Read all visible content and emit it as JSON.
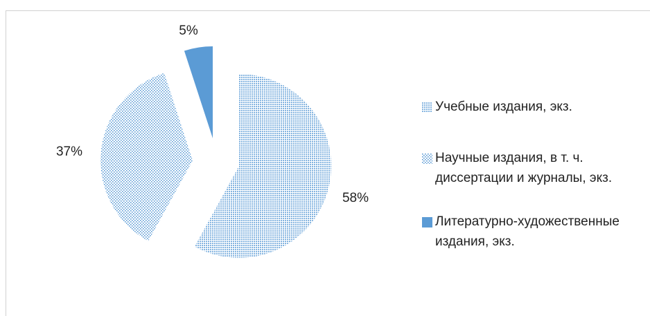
{
  "chart_data": {
    "type": "pie",
    "categories": [
      "Учебные издания, экз.",
      "Научные издания, в т. ч. диссертации и журналы, экз.",
      "Литературно-художественные издания, экз."
    ],
    "values": [
      58,
      37,
      5
    ],
    "value_labels": [
      "58%",
      "37%",
      "5%"
    ],
    "colors": [
      "#5b9bd5",
      "#5b9bd5",
      "#5b9bd5"
    ],
    "patterns": [
      "dense-dots",
      "sparse-dots",
      "solid"
    ],
    "exploded": true,
    "legend": "right"
  }
}
